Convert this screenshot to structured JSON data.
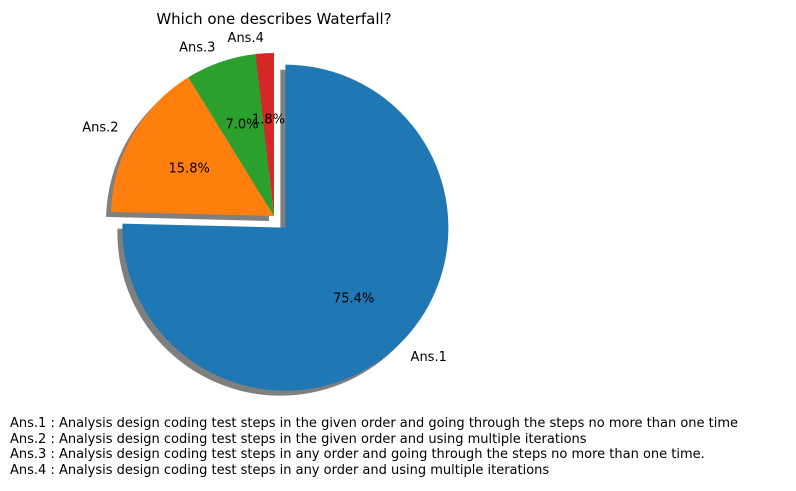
{
  "chart_data": {
    "type": "pie",
    "title": "Which one describes Waterfall?",
    "slices": [
      {
        "label": "Ans.1",
        "percent": 75.4,
        "percent_label": "75.4%",
        "color": "#1f77b4",
        "exploded": true
      },
      {
        "label": "Ans.2",
        "percent": 15.8,
        "percent_label": "15.8%",
        "color": "#ff7f0e",
        "exploded": false
      },
      {
        "label": "Ans.3",
        "percent": 7.0,
        "percent_label": "7.0%",
        "color": "#2ca02c",
        "exploded": false
      },
      {
        "label": "Ans.4",
        "percent": 1.8,
        "percent_label": "1.8%",
        "color": "#d62728",
        "exploded": false
      }
    ],
    "start_angle_deg": 90,
    "direction": "clockwise",
    "shadow": true,
    "notes": [
      "Ans.1 : Analysis design coding test steps in the given order and going through the steps no more than one time",
      "Ans.2 : Analysis design coding test steps in the given order and using multiple iterations",
      "Ans.3 : Analysis design coding test steps in any order and going through the steps no more than one time.",
      "Ans.4 : Analysis design coding test steps in any order and using multiple iterations"
    ]
  }
}
